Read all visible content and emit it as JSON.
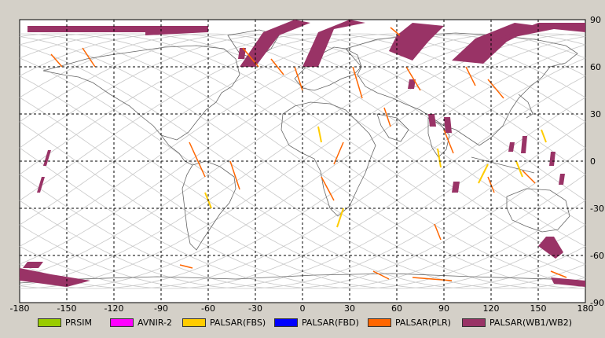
{
  "map": {
    "lon_ticks": [
      "-180",
      "-150",
      "-120",
      "-90",
      "-60",
      "-30",
      "0",
      "30",
      "60",
      "90",
      "120",
      "150",
      "180"
    ],
    "lat_ticks": [
      "90",
      "60",
      "30",
      "0",
      "-30",
      "-60",
      "-90"
    ],
    "colors": {
      "background": "#d4d0c8",
      "ocean": "#ffffff",
      "coast": "#666666",
      "orbit": "#c8c8c8",
      "grid": "#000000"
    }
  },
  "legend": [
    {
      "label": "PRSIM",
      "color": "#99cc00"
    },
    {
      "label": "AVNIR-2",
      "color": "#ff00ff"
    },
    {
      "label": "PALSAR(FBS)",
      "color": "#ffcc00"
    },
    {
      "label": "PALSAR(FBD)",
      "color": "#0000ff"
    },
    {
      "label": "PALSAR(PLR)",
      "color": "#ff6600"
    },
    {
      "label": "PALSAR(WB1/WB2)",
      "color": "#993366"
    }
  ]
}
